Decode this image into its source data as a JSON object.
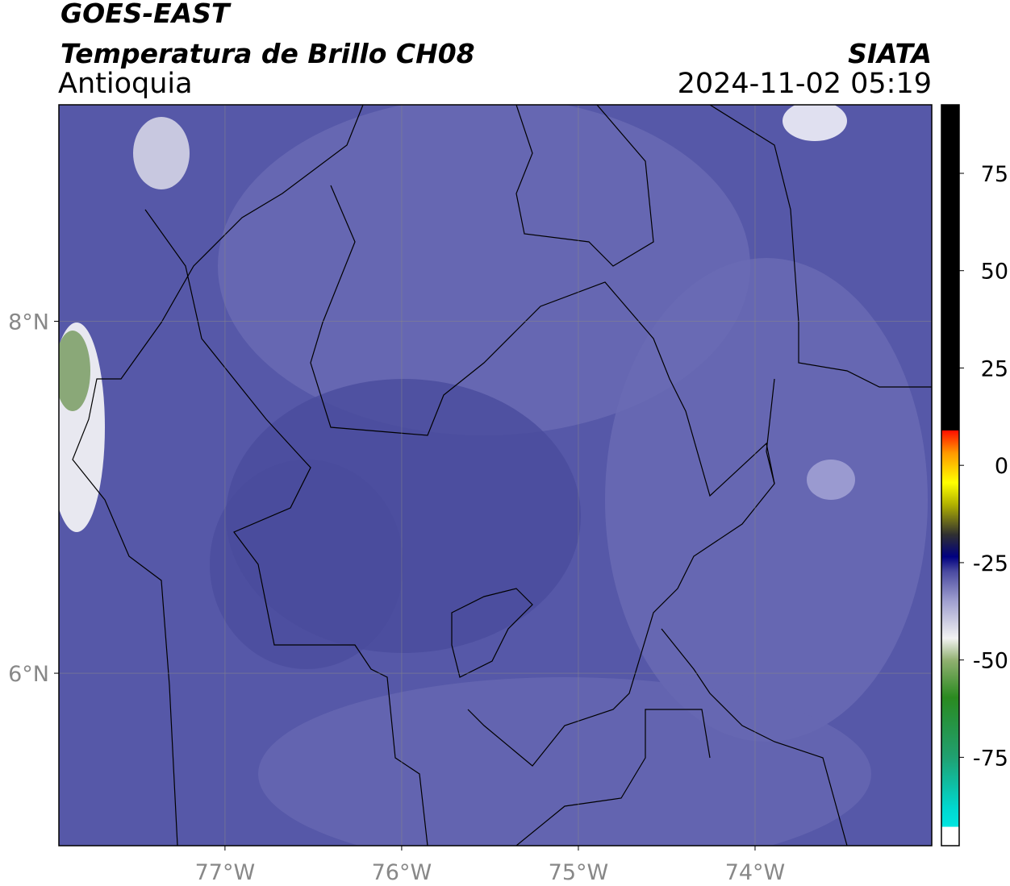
{
  "header": {
    "title": "GOES-EAST",
    "subtitle": "Temperatura de Brillo CH08",
    "region": "Antioquia",
    "source": "SIATA",
    "timestamp": "2024-11-02 05:19"
  },
  "map": {
    "xlim": [
      -77.94,
      -73.0
    ],
    "ylim": [
      5.02,
      9.23
    ],
    "xticks": [
      {
        "value": -77,
        "label": "77°W"
      },
      {
        "value": -76,
        "label": "76°W"
      },
      {
        "value": -75,
        "label": "75°W"
      },
      {
        "value": -74,
        "label": "74°W"
      }
    ],
    "yticks": [
      {
        "value": 8,
        "label": "8°N"
      },
      {
        "value": 6,
        "label": "6°N"
      }
    ],
    "grid": true
  },
  "colorbar": {
    "lim": [
      -97.7,
      92.6
    ],
    "ticks": [
      75,
      50,
      25,
      0,
      -25,
      -50,
      -75
    ]
  }
}
